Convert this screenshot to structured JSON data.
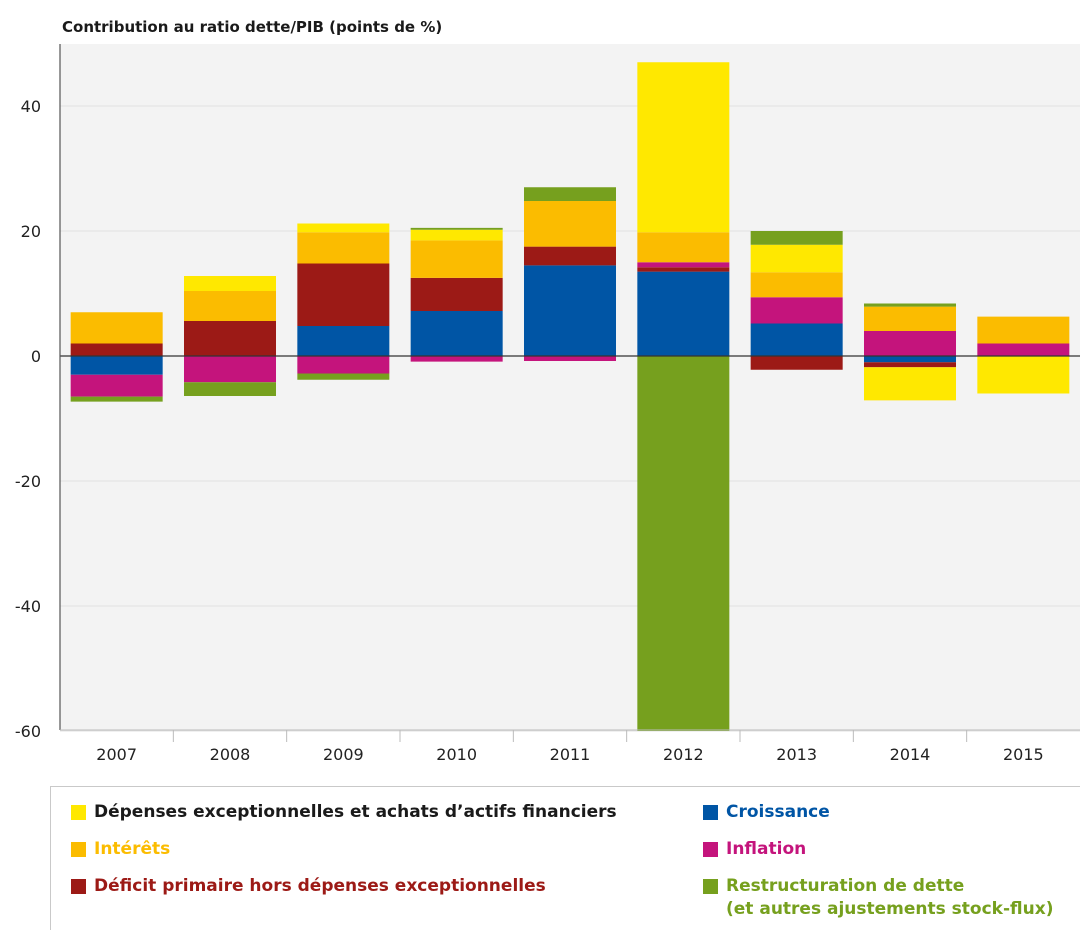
{
  "chart_data": {
    "type": "bar",
    "stacked": true,
    "title": "Contribution au ratio dette/PIB (points de %)",
    "categories": [
      "2007",
      "2008",
      "2009",
      "2010",
      "2011",
      "2012",
      "2013",
      "2014",
      "2015"
    ],
    "yticks": [
      "40",
      "20",
      "0",
      "-20",
      "-40",
      "-60"
    ],
    "ylim": [
      -60,
      50
    ],
    "grid": true,
    "legend_position": "bottom",
    "series": [
      {
        "name": "Croissance",
        "color": "#0055a5",
        "values": [
          -3.0,
          0.0,
          4.8,
          7.2,
          14.5,
          13.5,
          5.2,
          -1.0,
          0.0
        ]
      },
      {
        "name": "Déficit primaire hors dépenses exceptionnelles",
        "color": "#9c1a16",
        "values": [
          2.0,
          5.6,
          10.0,
          5.3,
          3.0,
          0.7,
          -2.2,
          -0.8,
          0.0
        ]
      },
      {
        "name": "Inflation",
        "color": "#c4147c",
        "values": [
          -3.5,
          -4.2,
          -2.8,
          -0.9,
          -0.8,
          0.8,
          4.2,
          4.0,
          2.0
        ]
      },
      {
        "name": "Intérêts",
        "color": "#fbbc00",
        "values": [
          5.0,
          4.8,
          5.0,
          6.0,
          7.3,
          4.8,
          4.0,
          3.9,
          4.3
        ]
      },
      {
        "name": "Dépenses exceptionnelles et achats d'actifs financiers",
        "color": "#ffe800",
        "values": [
          0.0,
          2.4,
          1.4,
          1.7,
          0.0,
          27.2,
          4.4,
          -5.3,
          -6.0
        ]
      },
      {
        "name": "Restructuration de dette\n(et autres ajustements stock-flux)",
        "color": "#76a01e",
        "values": [
          -0.8,
          -2.2,
          -1.0,
          0.3,
          2.2,
          -60.0,
          2.2,
          0.5,
          0.0
        ]
      }
    ]
  },
  "legend": [
    {
      "label": "Dépenses exceptionnelles et achats d’actifs financiers",
      "color": "#ffe800",
      "text_color": "#1a1a1a"
    },
    {
      "label": "Intérêts",
      "color": "#fbbc00",
      "text_color": "#fbbc00"
    },
    {
      "label": "Déficit primaire hors dépenses exceptionnelles",
      "color": "#9c1a16",
      "text_color": "#9c1a16"
    },
    {
      "label": "Croissance",
      "color": "#0055a5",
      "text_color": "#0055a5"
    },
    {
      "label": "Inflation",
      "color": "#c4147c",
      "text_color": "#c4147c"
    },
    {
      "label": "Restructuration de dette\n(et autres ajustements stock-flux)",
      "color": "#76a01e",
      "text_color": "#76a01e"
    }
  ]
}
